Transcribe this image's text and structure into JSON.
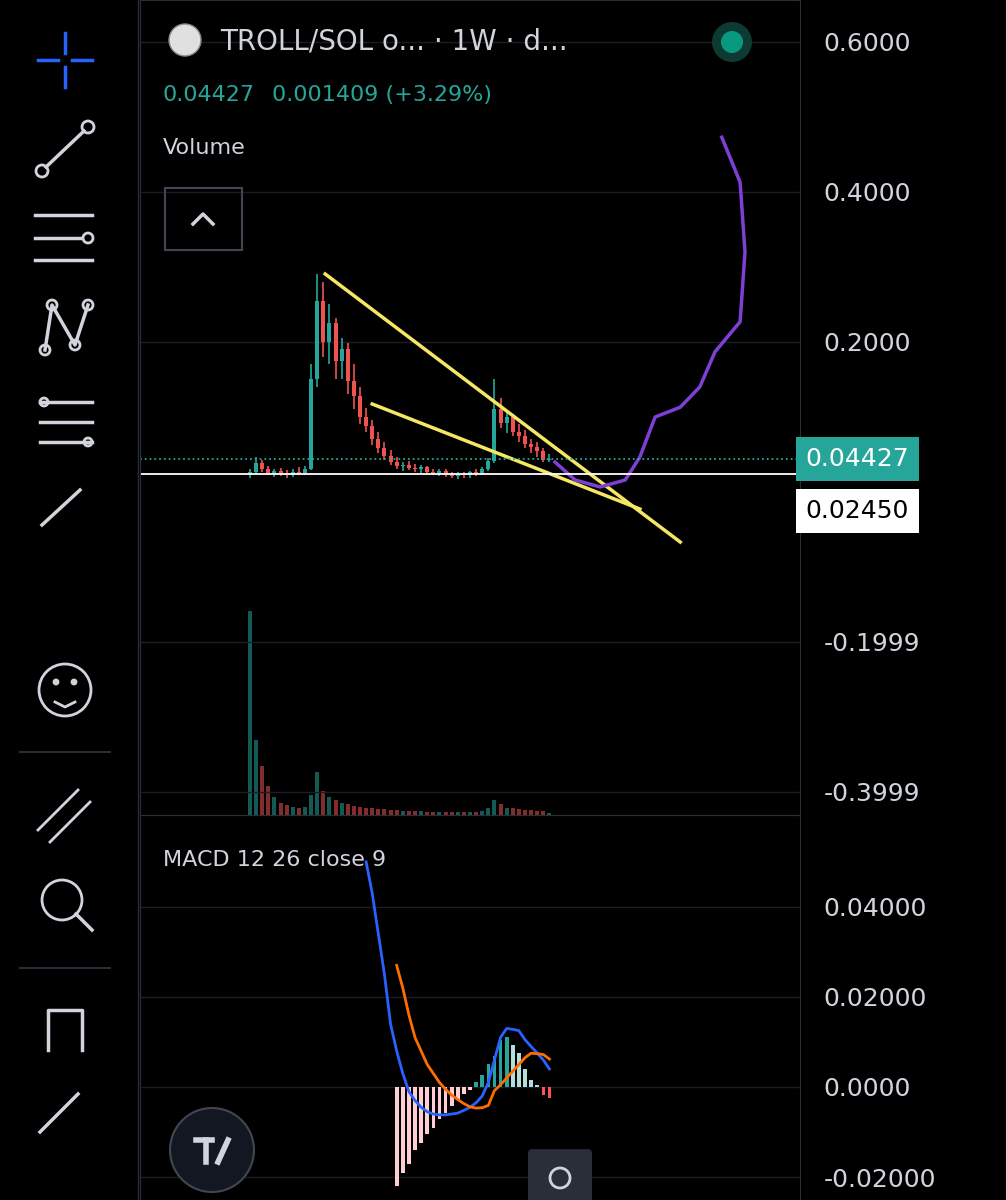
{
  "chart_data": [
    {
      "type": "candlestick",
      "title": "TROLL/SOL o... · 1W · d...",
      "last_price": "0.04427",
      "change": "0.001409 (+3.29%)",
      "volume_title": "Volume",
      "x": [
        0,
        1,
        2,
        3,
        4,
        5,
        6,
        7,
        8,
        9,
        10,
        11,
        12,
        13,
        14,
        15,
        16,
        17,
        18,
        19,
        20,
        21,
        22,
        23,
        24,
        25,
        26,
        27,
        28,
        29,
        30,
        31,
        32,
        33,
        34,
        35,
        36,
        37,
        38,
        39,
        40,
        41,
        42,
        43,
        44,
        45,
        46,
        47,
        48,
        49
      ],
      "open": [
        0.022,
        0.027,
        0.038,
        0.03,
        0.025,
        0.028,
        0.024,
        0.023,
        0.027,
        0.025,
        0.031,
        0.15,
        0.255,
        0.2,
        0.225,
        0.175,
        0.19,
        0.148,
        0.128,
        0.1,
        0.088,
        0.07,
        0.058,
        0.048,
        0.04,
        0.034,
        0.036,
        0.032,
        0.03,
        0.033,
        0.027,
        0.025,
        0.028,
        0.023,
        0.021,
        0.024,
        0.022,
        0.026,
        0.024,
        0.03,
        0.041,
        0.11,
        0.092,
        0.1,
        0.08,
        0.074,
        0.064,
        0.06,
        0.054,
        0.04286
      ],
      "high": [
        0.03,
        0.046,
        0.042,
        0.034,
        0.031,
        0.032,
        0.029,
        0.03,
        0.033,
        0.035,
        0.17,
        0.29,
        0.28,
        0.25,
        0.232,
        0.205,
        0.198,
        0.17,
        0.14,
        0.112,
        0.096,
        0.08,
        0.066,
        0.056,
        0.047,
        0.04,
        0.041,
        0.037,
        0.036,
        0.035,
        0.031,
        0.03,
        0.03,
        0.027,
        0.026,
        0.027,
        0.028,
        0.03,
        0.033,
        0.045,
        0.15,
        0.125,
        0.108,
        0.104,
        0.09,
        0.082,
        0.07,
        0.066,
        0.058,
        0.05
      ],
      "low": [
        0.018,
        0.024,
        0.026,
        0.022,
        0.02,
        0.021,
        0.019,
        0.02,
        0.022,
        0.023,
        0.029,
        0.14,
        0.18,
        0.17,
        0.15,
        0.15,
        0.13,
        0.11,
        0.09,
        0.08,
        0.062,
        0.052,
        0.042,
        0.036,
        0.03,
        0.028,
        0.029,
        0.026,
        0.025,
        0.024,
        0.022,
        0.021,
        0.02,
        0.018,
        0.017,
        0.019,
        0.019,
        0.021,
        0.022,
        0.028,
        0.039,
        0.085,
        0.078,
        0.074,
        0.066,
        0.058,
        0.052,
        0.047,
        0.04,
        0.04
      ],
      "close": [
        0.027,
        0.038,
        0.03,
        0.025,
        0.028,
        0.024,
        0.023,
        0.027,
        0.025,
        0.031,
        0.15,
        0.255,
        0.2,
        0.225,
        0.175,
        0.19,
        0.148,
        0.128,
        0.1,
        0.088,
        0.07,
        0.058,
        0.048,
        0.04,
        0.034,
        0.036,
        0.032,
        0.03,
        0.033,
        0.027,
        0.025,
        0.028,
        0.023,
        0.021,
        0.024,
        0.022,
        0.026,
        0.024,
        0.03,
        0.041,
        0.11,
        0.092,
        0.1,
        0.08,
        0.074,
        0.064,
        0.06,
        0.054,
        0.04286,
        0.04427
      ],
      "volume": [
        25,
        9.2,
        6,
        3.5,
        2.2,
        1.5,
        1.2,
        1,
        0.9,
        1,
        2.5,
        5.3,
        3,
        2.2,
        1.8,
        1.5,
        1.3,
        1.1,
        1,
        0.9,
        0.8,
        0.7,
        0.7,
        0.6,
        0.6,
        0.5,
        0.5,
        0.5,
        0.5,
        0.4,
        0.4,
        0.4,
        0.4,
        0.4,
        0.4,
        0.4,
        0.4,
        0.4,
        0.5,
        0.8,
        1.8,
        1.3,
        0.9,
        0.8,
        0.7,
        0.6,
        0.6,
        0.5,
        0.5,
        0.3
      ],
      "xlim": [
        -18,
        90
      ],
      "ylim": [
        -0.4307,
        0.656
      ],
      "yticks": [
        {
          "value": 0.6,
          "label": "0.6000"
        },
        {
          "value": 0.4,
          "label": "0.4000"
        },
        {
          "value": 0.2,
          "label": "0.2000"
        },
        -0.1999,
        -0.3999
      ],
      "y2lim": [
        0,
        100
      ],
      "y2ticks": [],
      "grid": true,
      "tick_labels": "y",
      "price_lines": [
        {
          "value": 0.04427,
          "label": "0.04427",
          "color": "#26a69a",
          "line_style": "dotted"
        },
        {
          "value": 0.0245,
          "label": "0.02450",
          "color": "#ffffff",
          "line_style": "solid"
        }
      ],
      "drawings": [
        {
          "type": "line",
          "color": "#f5e663",
          "line_style": "solid",
          "x": [
            12.3,
            70.4
          ],
          "values": [
            0.2907,
            -0.0667
          ]
        },
        {
          "type": "line",
          "color": "#f5e663",
          "line_style": "solid",
          "x": [
            20.0,
            63.8
          ],
          "values": [
            0.1173,
            -0.0227
          ]
        },
        {
          "type": "line",
          "color": "#7e3fd6",
          "line_style": "solid",
          "x": [
            49.9,
            53.2,
            57.3,
            61.4,
            63.8,
            66.3,
            70.4,
            73.6,
            76.1,
            80.2,
            81.0,
            80.2,
            77.2
          ],
          "values": [
            0.04,
            0.016,
            0.0067,
            0.016,
            0.0467,
            0.1,
            0.113,
            0.14,
            0.187,
            0.227,
            0.32,
            0.413,
            0.473
          ]
        }
      ]
    },
    {
      "type": "line",
      "title": "MACD 12 26 close 9",
      "x": [
        0,
        1,
        2,
        3,
        4,
        5,
        6,
        7,
        8,
        9,
        10,
        11,
        12,
        13,
        14,
        15,
        16,
        17,
        18,
        19,
        20,
        21,
        22,
        23,
        24,
        25,
        26,
        27,
        28,
        29,
        30,
        31,
        32,
        33,
        34,
        35,
        36,
        37,
        38,
        39,
        40,
        41,
        42,
        43,
        44,
        45,
        46,
        47,
        48,
        49
      ],
      "xlim": [
        -18,
        90
      ],
      "ylim": [
        -0.0251,
        0.0604
      ],
      "yticks": [
        {
          "value": 0.04,
          "label": "0.04000"
        },
        {
          "value": 0.02,
          "label": "0.02000"
        },
        {
          "value": 0,
          "label": "0.0000"
        },
        {
          "value": -0.02,
          "label": "-0.02000"
        }
      ],
      "grid": true,
      "tick_labels": "y",
      "series": [
        {
          "type": "bar",
          "values": [
            null,
            null,
            null,
            null,
            null,
            null,
            null,
            null,
            null,
            null,
            null,
            null,
            null,
            null,
            null,
            null,
            null,
            null,
            null,
            null,
            null,
            null,
            null,
            null,
            -0.022,
            -0.019,
            -0.017,
            -0.014,
            -0.0125,
            -0.0105,
            -0.009,
            -0.0072,
            -0.0057,
            -0.0042,
            -0.003,
            -0.0015,
            -0.0006,
            0.0012,
            0.0026,
            0.005,
            0.0068,
            0.0105,
            0.011,
            0.0093,
            0.0075,
            0.004,
            0.0015,
            0.0005,
            -0.0018,
            -0.0025
          ]
        },
        {
          "type": "line",
          "color": "#2962ff",
          "values": [
            null,
            null,
            null,
            null,
            null,
            null,
            null,
            null,
            null,
            null,
            null,
            null,
            null,
            null,
            null,
            null,
            null,
            null,
            null,
            0.05,
            0.043,
            0.034,
            0.025,
            0.014,
            0.008,
            0.003,
            -0.001,
            -0.003,
            -0.0045,
            -0.0055,
            -0.006,
            -0.0062,
            -0.0062,
            -0.006,
            -0.0058,
            -0.0052,
            -0.0045,
            -0.0035,
            -0.002,
            0.001,
            0.006,
            0.011,
            0.013,
            0.0128,
            0.0125,
            0.0105,
            0.009,
            0.0075,
            0.006,
            0.004
          ]
        },
        {
          "type": "line",
          "color": "#ff6d00",
          "values": [
            null,
            null,
            null,
            null,
            null,
            null,
            null,
            null,
            null,
            null,
            null,
            null,
            null,
            null,
            null,
            null,
            null,
            null,
            null,
            null,
            null,
            null,
            null,
            null,
            0.027,
            0.022,
            0.016,
            0.011,
            0.008,
            0.005,
            0.003,
            0.001,
            -0.0005,
            -0.0018,
            -0.0028,
            -0.0037,
            -0.0044,
            -0.0047,
            -0.0046,
            -0.0041,
            -0.0008,
            0.0005,
            0.002,
            0.0035,
            0.005,
            0.0065,
            0.0075,
            0.0074,
            0.0072,
            0.0062
          ]
        }
      ]
    }
  ]
}
